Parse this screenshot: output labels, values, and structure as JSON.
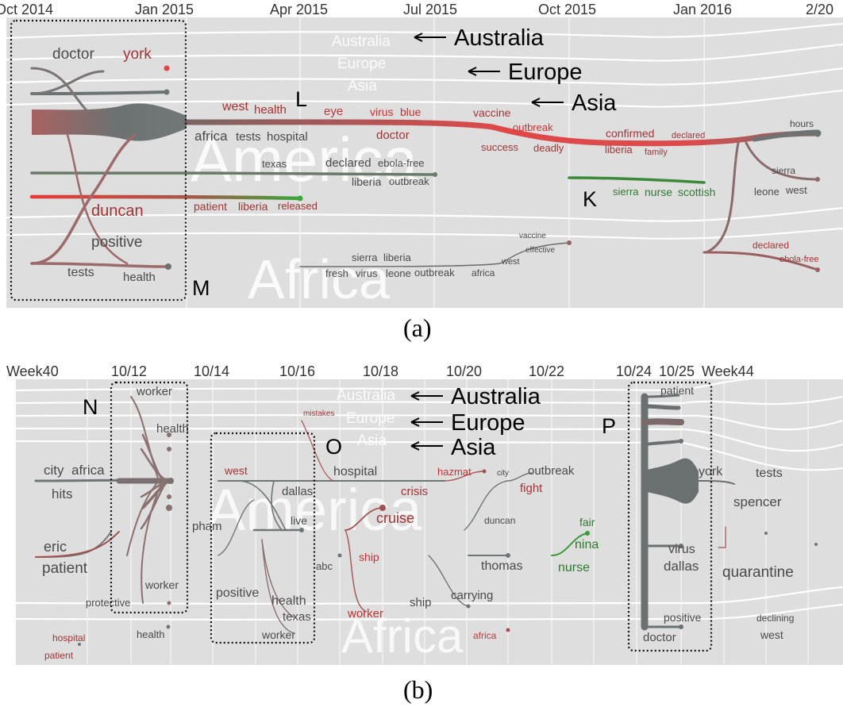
{
  "panel_a": {
    "caption": "(a)",
    "axis_labels": [
      "Oct 2014",
      "Jan 2015",
      "Apr 2015",
      "Jul 2015",
      "Oct 2015",
      "Jan 2016",
      "2/20"
    ],
    "regions": {
      "america": "America",
      "africa": "Africa",
      "australia": "Australia",
      "europe": "Europe",
      "asia": "Asia"
    },
    "annotations": {
      "australia": "Australia",
      "europe": "Europe",
      "asia": "Asia"
    },
    "markers": {
      "L": "L",
      "K": "K",
      "M": "M"
    },
    "keywords": {
      "doctor": "doctor",
      "york": "york",
      "duncan": "duncan",
      "positive": "positive",
      "tests": "tests",
      "health": "health",
      "west": "west",
      "health2": "health",
      "africa": "africa",
      "tests2": "tests",
      "hospital": "hospital",
      "eye": "eye",
      "virus": "virus",
      "blue": "blue",
      "doctor2": "doctor",
      "vaccine": "vaccine",
      "outbreak": "outbreak",
      "success": "success",
      "deadly": "deadly",
      "confirmed": "confirmed",
      "declared": "declared",
      "liberia": "liberia",
      "family": "family",
      "hours": "hours",
      "sierra": "sierra",
      "leone": "leone",
      "west2": "west",
      "texas": "texas",
      "declared2": "declared",
      "ebola_free": "ebola-free",
      "liberia2": "liberia",
      "outbreak2": "outbreak",
      "patient": "patient",
      "liberia3": "liberia",
      "released": "released",
      "sierra2": "sierra",
      "nurse": "nurse",
      "scottish": "scottish",
      "sierra3": "sierra",
      "liberia4": "liberia",
      "fresh": "fresh",
      "virus2": "virus",
      "leone2": "leone",
      "outbreak3": "outbreak",
      "africa2": "africa",
      "west3": "west",
      "vaccine2": "vaccine",
      "effective": "effective",
      "declared3": "declared",
      "ebola_free2": "ebola-free"
    }
  },
  "panel_b": {
    "caption": "(b)",
    "axis_labels": [
      "Week40",
      "10/12",
      "10/14",
      "10/16",
      "10/18",
      "10/20",
      "10/22",
      "10/24",
      "10/25",
      "Week44"
    ],
    "regions": {
      "america": "America",
      "africa": "Africa",
      "australia": "Australia",
      "europe": "Europe",
      "asia": "Asia"
    },
    "annotations": {
      "australia": "Australia",
      "europe": "Europe",
      "asia": "Asia"
    },
    "markers": {
      "N": "N",
      "O": "O",
      "P": "P"
    },
    "keywords": {
      "worker": "worker",
      "health": "health",
      "city": "city",
      "africa": "africa",
      "hits": "hits",
      "eric": "eric",
      "patient": "patient",
      "worker2": "worker",
      "protective": "protective",
      "health2": "health",
      "hospital": "hospital",
      "patient2": "patient",
      "mistakes": "mistakes",
      "west": "west",
      "dallas": "dallas",
      "pham": "pham",
      "live": "live",
      "abc": "abc",
      "positive": "positive",
      "health3": "health",
      "texas": "texas",
      "worker3": "worker",
      "hospital2": "hospital",
      "crisis": "crisis",
      "cruise": "cruise",
      "ship": "ship",
      "worker4": "worker",
      "hazmat": "hazmat",
      "city2": "city",
      "outbreak": "outbreak",
      "fight": "fight",
      "duncan": "duncan",
      "thomas": "thomas",
      "ship2": "ship",
      "carrying": "carrying",
      "africa2": "africa",
      "fair": "fair",
      "nina": "nina",
      "nurse": "nurse",
      "patient3": "patient",
      "york": "york",
      "virus": "virus",
      "dallas2": "dallas",
      "positive2": "positive",
      "doctor": "doctor",
      "tests": "tests",
      "spencer": "spencer",
      "quarantine": "quarantine",
      "declining": "declining",
      "west2": "west"
    }
  },
  "colors": {
    "background": "#dedede",
    "gray_stream": "#6a7272",
    "red_stream": "#e04848",
    "green_stream": "#3a8a3a",
    "keyword_red": "#a23434",
    "keyword_gray": "#4a4a4a",
    "keyword_green": "#2e7a2e"
  }
}
